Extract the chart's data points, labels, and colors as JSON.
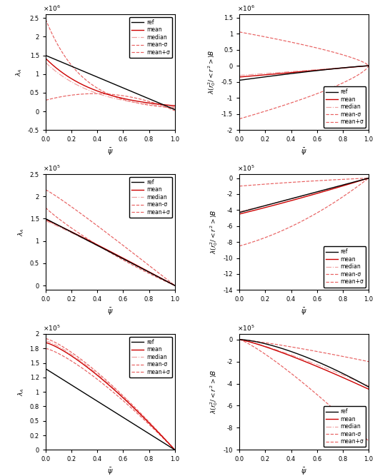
{
  "npts": 300,
  "legend_labels": [
    "ref",
    "mean",
    "mean+σ",
    "mean-σ",
    "median"
  ],
  "xlabel": "$\\bar{\\psi}$",
  "colors": {
    "ref": "#000000",
    "mean": "#cc0000",
    "meanplus": "#e86060",
    "meanminus": "#e86060",
    "median": "#f0a0a0"
  },
  "subplots": [
    {
      "row": 0,
      "col": 0,
      "ylabel": "$\\lambda_A$",
      "ylim": [
        -500000.0,
        2600000.0
      ],
      "sci_exp": 6,
      "legend_loc": "upper right"
    },
    {
      "row": 0,
      "col": 1,
      "ylabel": "$\\lambda(r_0^2/<r^2>)B$",
      "ylim": [
        -2000000.0,
        1600000.0
      ],
      "sci_exp": 6,
      "legend_loc": "lower right"
    },
    {
      "row": 1,
      "col": 0,
      "ylabel": "$\\lambda_A$",
      "ylim": [
        -10000.0,
        250000.0
      ],
      "sci_exp": 5,
      "legend_loc": "upper right"
    },
    {
      "row": 1,
      "col": 1,
      "ylabel": "$\\lambda(r_0^2/<r^2>)B$",
      "ylim": [
        -1400000.0,
        50000.0
      ],
      "sci_exp": 5,
      "legend_loc": "lower right"
    },
    {
      "row": 2,
      "col": 0,
      "ylabel": "$\\lambda_A$",
      "ylim": [
        0,
        200000.0
      ],
      "sci_exp": 5,
      "legend_loc": "upper right"
    },
    {
      "row": 2,
      "col": 1,
      "ylabel": "$\\lambda(r_0^2/<r^2>)B$",
      "ylim": [
        -1000000.0,
        50000.0
      ],
      "sci_exp": 5,
      "legend_loc": "lower right"
    }
  ]
}
